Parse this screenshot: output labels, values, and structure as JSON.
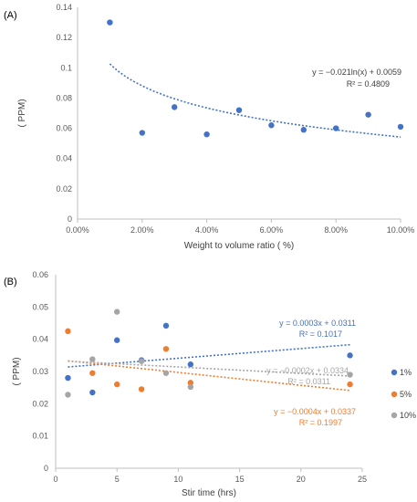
{
  "chart_data": [
    {
      "type": "scatter",
      "panel_label": "(A)",
      "title": "",
      "xlabel": "Weight to volume ratio ( %)",
      "ylabel": "( PPM)",
      "xlim": [
        0,
        0.1
      ],
      "ylim": [
        0,
        0.14
      ],
      "xticks": [
        "0.00%",
        "2.00%",
        "4.00%",
        "6.00%",
        "8.00%",
        "10.00%"
      ],
      "yticks": [
        "0",
        "0.02",
        "0.04",
        "0.06",
        "0.08",
        "0.1",
        "0.12",
        "0.14"
      ],
      "grid": false,
      "series": [
        {
          "color": "#4472C4",
          "x": [
            0.01,
            0.02,
            0.03,
            0.04,
            0.05,
            0.06,
            0.07,
            0.08,
            0.09,
            0.1
          ],
          "y": [
            0.13,
            0.057,
            0.074,
            0.056,
            0.072,
            0.062,
            0.059,
            0.06,
            0.069,
            0.061
          ]
        }
      ],
      "trendline": {
        "type": "log",
        "a": -0.021,
        "b": 0.0059,
        "color": "#4472C4",
        "equation": "y = −0.021ln(x) + 0.0059",
        "r2": "R² = 0.4809"
      }
    },
    {
      "type": "scatter",
      "panel_label": "(B)",
      "title": "",
      "xlabel": "Stir time (hrs)",
      "ylabel": "( PPM)",
      "xlim": [
        0,
        25
      ],
      "ylim": [
        0,
        0.06
      ],
      "xticks": [
        "0",
        "5",
        "10",
        "15",
        "20",
        "25"
      ],
      "yticks": [
        "0",
        "0.01",
        "0.02",
        "0.03",
        "0.04",
        "0.05",
        "0.06"
      ],
      "grid": false,
      "legend_position": "right",
      "series": [
        {
          "name": "1%",
          "color": "#4472C4",
          "x": [
            1,
            3,
            5,
            7,
            9,
            11,
            24
          ],
          "y": [
            0.028,
            0.0235,
            0.0397,
            0.0335,
            0.0442,
            0.0322,
            0.035
          ],
          "trendline": {
            "slope": 0.0003,
            "intercept": 0.0311,
            "equation": "y = 0.0003x + 0.0311",
            "r2": "R² = 0.1017"
          }
        },
        {
          "name": "5%",
          "color": "#ED7D31",
          "x": [
            1,
            3,
            5,
            7,
            9,
            11,
            24
          ],
          "y": [
            0.0425,
            0.0295,
            0.026,
            0.0245,
            0.037,
            0.0265,
            0.026
          ],
          "trendline": {
            "slope": -0.0004,
            "intercept": 0.0337,
            "equation": "y = −0.0004x + 0.0337",
            "r2": "R² = 0.1997"
          }
        },
        {
          "name": "10%",
          "color": "#A5A5A5",
          "x": [
            1,
            3,
            5,
            7,
            9,
            11,
            24
          ],
          "y": [
            0.0228,
            0.0338,
            0.0485,
            0.0332,
            0.0295,
            0.0252,
            0.029
          ],
          "trendline": {
            "slope": -0.0002,
            "intercept": 0.0334,
            "equation": "y = −0.0002x + 0.0334",
            "r2": "R² = 0.0311"
          }
        }
      ]
    }
  ]
}
